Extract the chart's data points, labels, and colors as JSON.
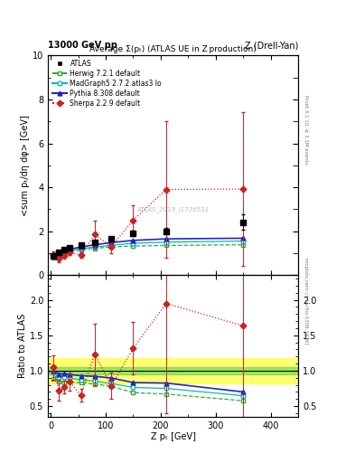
{
  "title_top_left": "13000 GeV pp",
  "title_top_right": "Z (Drell-Yan)",
  "plot_title": "Average Σ(pₜ) (ATLAS UE in Z production)",
  "ylabel_main": "<sum pₜ/dη dφ> [GeV]",
  "ylabel_ratio": "Ratio to ATLAS",
  "xlabel": "Z pₜ [GeV]",
  "right_label_top": "Rivet 3.1.10, ≥ 3.1M events",
  "right_label_bottom": "mcplots.cern.ch [arXiv:1306.3436]",
  "watermark": "ATLAS_2019_I1736531",
  "ylim_main": [
    0.0,
    10.0
  ],
  "ylim_ratio": [
    0.35,
    2.35
  ],
  "xlim": [
    -5,
    450
  ],
  "atlas_x": [
    5,
    15,
    25,
    35,
    55,
    80,
    110,
    150,
    210,
    350
  ],
  "atlas_y": [
    0.88,
    1.05,
    1.15,
    1.25,
    1.38,
    1.5,
    1.65,
    1.9,
    2.0,
    2.4
  ],
  "atlas_yerr": [
    0.05,
    0.05,
    0.05,
    0.06,
    0.07,
    0.08,
    0.1,
    0.12,
    0.15,
    0.35
  ],
  "herwig_x": [
    5,
    15,
    25,
    35,
    55,
    80,
    110,
    150,
    210,
    350
  ],
  "herwig_y": [
    0.78,
    0.88,
    0.95,
    1.05,
    1.15,
    1.22,
    1.28,
    1.32,
    1.35,
    1.38
  ],
  "madgraph_x": [
    5,
    15,
    25,
    35,
    55,
    80,
    110,
    150,
    210,
    350
  ],
  "madgraph_y": [
    0.85,
    0.95,
    1.05,
    1.12,
    1.2,
    1.28,
    1.35,
    1.45,
    1.5,
    1.55
  ],
  "pythia_x": [
    5,
    15,
    25,
    35,
    55,
    80,
    110,
    150,
    210,
    350
  ],
  "pythia_y": [
    0.88,
    1.0,
    1.1,
    1.18,
    1.28,
    1.38,
    1.48,
    1.58,
    1.65,
    1.68
  ],
  "sherpa_x": [
    5,
    15,
    25,
    35,
    55,
    80,
    110,
    150,
    210,
    350
  ],
  "sherpa_y": [
    0.92,
    0.75,
    0.88,
    1.05,
    0.9,
    1.85,
    1.3,
    2.5,
    3.9,
    3.92
  ],
  "sherpa_yerr_lo": [
    0.15,
    0.15,
    0.1,
    0.15,
    0.12,
    0.65,
    0.3,
    0.7,
    3.1,
    3.5
  ],
  "sherpa_yerr_hi": [
    0.15,
    0.15,
    0.1,
    0.15,
    0.12,
    0.65,
    0.3,
    0.7,
    3.1,
    3.5
  ],
  "atlas_color": "#000000",
  "herwig_color": "#33aa33",
  "madgraph_color": "#00bbbb",
  "pythia_color": "#2222cc",
  "sherpa_color": "#cc2222",
  "band_green_lo": 0.95,
  "band_green_hi": 1.05,
  "band_yellow_lo": 0.82,
  "band_yellow_hi": 1.18,
  "ratio_herwig": [
    0.89,
    0.84,
    0.83,
    0.84,
    0.83,
    0.81,
    0.78,
    0.69,
    0.67,
    0.575
  ],
  "ratio_madgraph": [
    0.97,
    0.905,
    0.913,
    0.896,
    0.87,
    0.853,
    0.818,
    0.763,
    0.75,
    0.646
  ],
  "ratio_pythia": [
    1.0,
    0.952,
    0.957,
    0.944,
    0.928,
    0.92,
    0.897,
    0.832,
    0.825,
    0.7
  ],
  "ratio_sherpa": [
    1.045,
    0.714,
    0.765,
    0.84,
    0.652,
    1.233,
    0.788,
    1.316,
    1.95,
    1.633
  ],
  "ratio_sherpa_yerr_lo": [
    0.17,
    0.143,
    0.087,
    0.12,
    0.087,
    0.433,
    0.182,
    0.368,
    1.55,
    1.458
  ],
  "ratio_sherpa_yerr_hi": [
    0.17,
    0.143,
    0.087,
    0.12,
    0.087,
    0.433,
    0.182,
    0.368,
    1.55,
    1.458
  ]
}
